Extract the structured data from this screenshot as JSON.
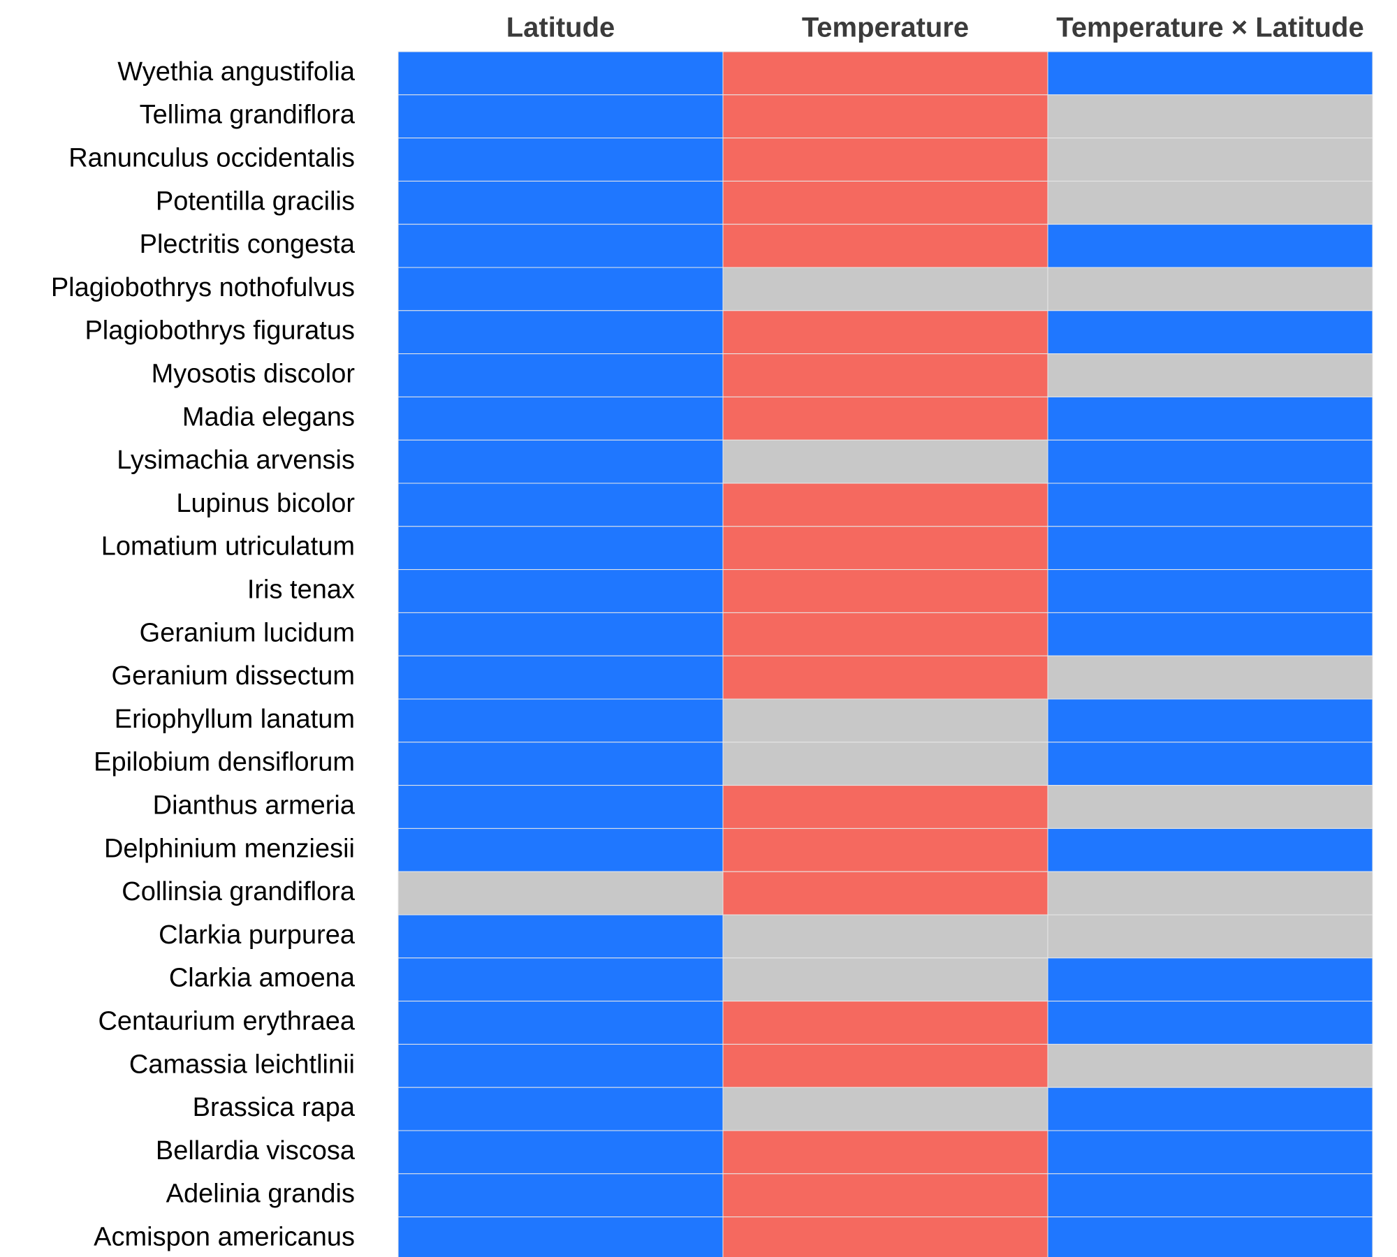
{
  "chart_data": {
    "type": "heatmap",
    "columns": [
      "Latitude",
      "Temperature",
      "Temperature × Latitude"
    ],
    "rows": [
      "Wyethia angustifolia",
      "Tellima grandiflora",
      "Ranunculus occidentalis",
      "Potentilla gracilis",
      "Plectritis congesta",
      "Plagiobothrys nothofulvus",
      "Plagiobothrys figuratus",
      "Myosotis discolor",
      "Madia elegans",
      "Lysimachia arvensis",
      "Lupinus bicolor",
      "Lomatium utriculatum",
      "Iris tenax",
      "Geranium lucidum",
      "Geranium dissectum",
      "Eriophyllum lanatum",
      "Epilobium densiflorum",
      "Dianthus armeria",
      "Delphinium menziesii",
      "Collinsia grandiflora",
      "Clarkia purpurea",
      "Clarkia amoena",
      "Centaurium erythraea",
      "Camassia leichtlinii",
      "Brassica rapa",
      "Bellardia viscosa",
      "Adelinia grandis",
      "Acmispon americanus"
    ],
    "categories": [
      "blue",
      "red",
      "gray"
    ],
    "colors": {
      "blue": "#1f77ff",
      "red": "#f5695f",
      "gray": "#c8c8c8"
    },
    "values": [
      [
        "blue",
        "red",
        "blue"
      ],
      [
        "blue",
        "red",
        "gray"
      ],
      [
        "blue",
        "red",
        "gray"
      ],
      [
        "blue",
        "red",
        "gray"
      ],
      [
        "blue",
        "red",
        "blue"
      ],
      [
        "blue",
        "gray",
        "gray"
      ],
      [
        "blue",
        "red",
        "blue"
      ],
      [
        "blue",
        "red",
        "gray"
      ],
      [
        "blue",
        "red",
        "blue"
      ],
      [
        "blue",
        "gray",
        "blue"
      ],
      [
        "blue",
        "red",
        "blue"
      ],
      [
        "blue",
        "red",
        "blue"
      ],
      [
        "blue",
        "red",
        "blue"
      ],
      [
        "blue",
        "red",
        "blue"
      ],
      [
        "blue",
        "red",
        "gray"
      ],
      [
        "blue",
        "gray",
        "blue"
      ],
      [
        "blue",
        "gray",
        "blue"
      ],
      [
        "blue",
        "red",
        "gray"
      ],
      [
        "blue",
        "red",
        "blue"
      ],
      [
        "gray",
        "red",
        "gray"
      ],
      [
        "blue",
        "gray",
        "gray"
      ],
      [
        "blue",
        "gray",
        "blue"
      ],
      [
        "blue",
        "red",
        "blue"
      ],
      [
        "blue",
        "red",
        "gray"
      ],
      [
        "blue",
        "gray",
        "blue"
      ],
      [
        "blue",
        "red",
        "blue"
      ],
      [
        "blue",
        "red",
        "blue"
      ],
      [
        "blue",
        "red",
        "blue"
      ]
    ],
    "legend": "none",
    "grid": false
  }
}
